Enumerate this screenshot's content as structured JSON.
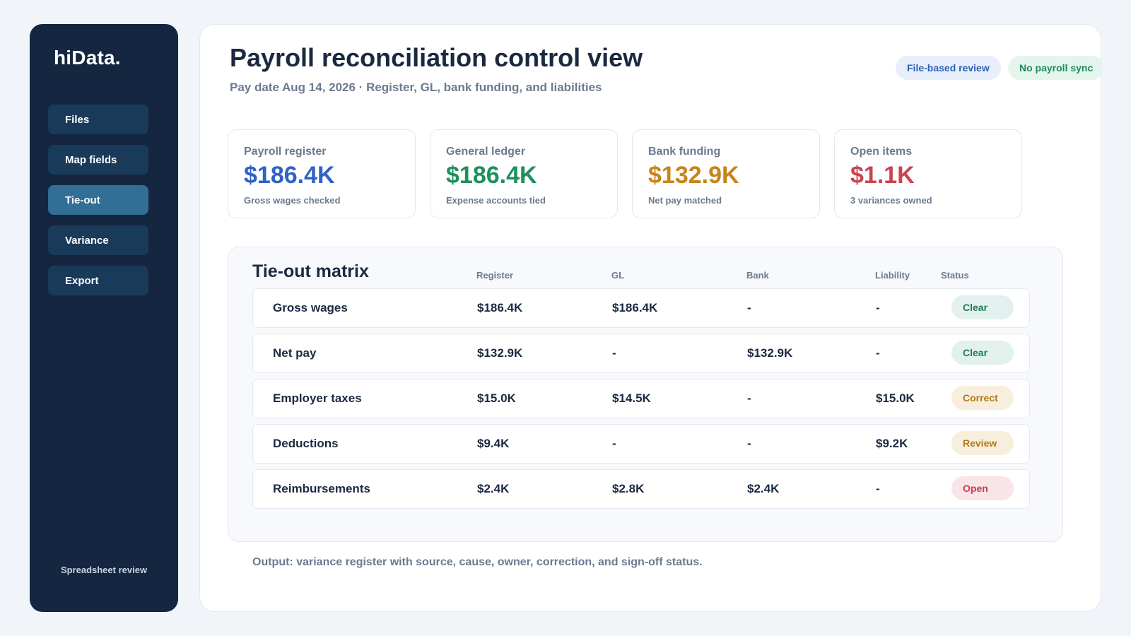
{
  "sidebar": {
    "logo": "hiData.",
    "items": [
      {
        "label": "Files"
      },
      {
        "label": "Map fields"
      },
      {
        "label": "Tie-out"
      },
      {
        "label": "Variance"
      },
      {
        "label": "Export"
      }
    ],
    "active_item": "Tie-out",
    "footer": "Spreadsheet review"
  },
  "header": {
    "title": "Payroll reconciliation control view",
    "subtitle": "Pay date Aug 14, 2026 · Register, GL, bank funding, and liabilities",
    "badges": [
      "File-based review",
      "No payroll sync"
    ]
  },
  "kpis": [
    {
      "label": "Payroll register",
      "value": "$186.4K",
      "note": "Gross wages checked",
      "color": "#2f62c9"
    },
    {
      "label": "General ledger",
      "value": "$186.4K",
      "note": "Expense accounts tied",
      "color": "#1f8f5f"
    },
    {
      "label": "Bank funding",
      "value": "$132.9K",
      "note": "Net pay matched",
      "color": "#c88419"
    },
    {
      "label": "Open items",
      "value": "$1.1K",
      "note": "3 variances owned",
      "color": "#c84452"
    }
  ],
  "matrix": {
    "title": "Tie-out matrix",
    "columns": [
      "Register",
      "GL",
      "Bank",
      "Liability",
      "Status"
    ],
    "rows": [
      {
        "name": "Gross wages",
        "register": "$186.4K",
        "gl": "$186.4K",
        "bank": "-",
        "liability": "-",
        "status": "Clear"
      },
      {
        "name": "Net pay",
        "register": "$132.9K",
        "gl": "-",
        "bank": "$132.9K",
        "liability": "-",
        "status": "Clear"
      },
      {
        "name": "Employer taxes",
        "register": "$15.0K",
        "gl": "$14.5K",
        "bank": "-",
        "liability": "$15.0K",
        "status": "Correct"
      },
      {
        "name": "Deductions",
        "register": "$9.4K",
        "gl": "-",
        "bank": "-",
        "liability": "$9.2K",
        "status": "Review"
      },
      {
        "name": "Reimbursements",
        "register": "$2.4K",
        "gl": "$2.8K",
        "bank": "$2.4K",
        "liability": "-",
        "status": "Open"
      }
    ]
  },
  "footer_note": "Output: variance register with source, cause, owner, correction, and sign-off status."
}
